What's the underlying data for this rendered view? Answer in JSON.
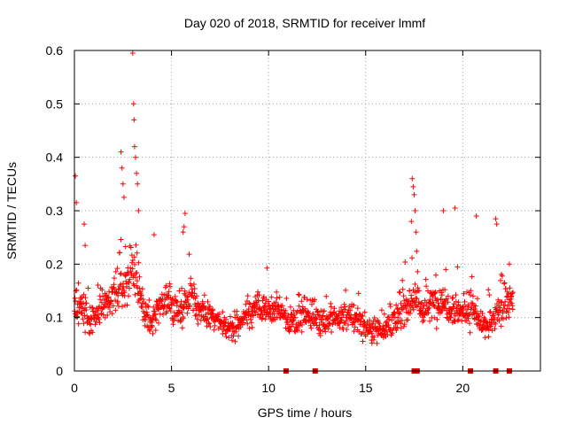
{
  "chart_data": {
    "type": "scatter",
    "title": "Day 020 of 2018, SRMTID for receiver lmmf",
    "xlabel": "GPS time / hours",
    "ylabel": "SRMTID / TECUs",
    "xlim": [
      0,
      24
    ],
    "ylim": [
      0,
      0.6
    ],
    "xticks": [
      "0",
      "5",
      "10",
      "15",
      "20"
    ],
    "yticks": [
      "0",
      "0.1",
      "0.2",
      "0.3",
      "0.4",
      "0.5",
      "0.6"
    ],
    "xtick_values": [
      0,
      5,
      10,
      15,
      20
    ],
    "ytick_values": [
      0,
      0.1,
      0.2,
      0.3,
      0.4,
      0.5,
      0.6
    ],
    "grid": true,
    "marker": "plus",
    "series_color": "#ff0000",
    "gap_marker_color": "#e00000",
    "x_range_of_data": [
      0,
      22.6
    ],
    "envelope": {
      "x": [
        0,
        0.5,
        1,
        1.5,
        2,
        2.5,
        3,
        3.5,
        4,
        4.5,
        5,
        5.5,
        6,
        6.5,
        7,
        7.5,
        8,
        8.5,
        9,
        9.5,
        10,
        10.5,
        11,
        11.5,
        12,
        12.5,
        13,
        13.5,
        14,
        14.5,
        15,
        15.5,
        16,
        16.5,
        17,
        17.5,
        18,
        18.5,
        19,
        19.5,
        20,
        20.5,
        21,
        21.5,
        22,
        22.5
      ],
      "median": [
        0.12,
        0.11,
        0.1,
        0.12,
        0.14,
        0.16,
        0.2,
        0.12,
        0.09,
        0.13,
        0.12,
        0.11,
        0.15,
        0.11,
        0.1,
        0.09,
        0.08,
        0.09,
        0.11,
        0.12,
        0.11,
        0.12,
        0.09,
        0.1,
        0.11,
        0.1,
        0.09,
        0.1,
        0.1,
        0.1,
        0.08,
        0.08,
        0.08,
        0.09,
        0.12,
        0.14,
        0.11,
        0.13,
        0.13,
        0.12,
        0.11,
        0.12,
        0.08,
        0.09,
        0.12,
        0.13
      ],
      "spread": [
        0.05,
        0.06,
        0.05,
        0.05,
        0.06,
        0.07,
        0.09,
        0.06,
        0.05,
        0.06,
        0.06,
        0.06,
        0.06,
        0.05,
        0.05,
        0.04,
        0.04,
        0.04,
        0.05,
        0.05,
        0.05,
        0.05,
        0.04,
        0.05,
        0.05,
        0.05,
        0.04,
        0.04,
        0.05,
        0.05,
        0.04,
        0.04,
        0.04,
        0.05,
        0.06,
        0.06,
        0.05,
        0.06,
        0.06,
        0.06,
        0.05,
        0.06,
        0.04,
        0.05,
        0.05,
        0.05
      ]
    },
    "point_count": 1400,
    "peaks": [
      {
        "x": 0.05,
        "y": 0.365
      },
      {
        "x": 0.1,
        "y": 0.315
      },
      {
        "x": 0.5,
        "y": 0.275
      },
      {
        "x": 0.55,
        "y": 0.235
      },
      {
        "x": 2.4,
        "y": 0.41
      },
      {
        "x": 2.45,
        "y": 0.38
      },
      {
        "x": 2.5,
        "y": 0.35
      },
      {
        "x": 2.55,
        "y": 0.325
      },
      {
        "x": 3.0,
        "y": 0.595
      },
      {
        "x": 3.05,
        "y": 0.5
      },
      {
        "x": 3.07,
        "y": 0.47
      },
      {
        "x": 3.1,
        "y": 0.42
      },
      {
        "x": 3.15,
        "y": 0.4
      },
      {
        "x": 3.2,
        "y": 0.37
      },
      {
        "x": 3.25,
        "y": 0.35
      },
      {
        "x": 3.3,
        "y": 0.3
      },
      {
        "x": 4.1,
        "y": 0.255
      },
      {
        "x": 5.7,
        "y": 0.295
      },
      {
        "x": 5.65,
        "y": 0.27
      },
      {
        "x": 5.6,
        "y": 0.26
      },
      {
        "x": 17.4,
        "y": 0.36
      },
      {
        "x": 17.45,
        "y": 0.345
      },
      {
        "x": 17.5,
        "y": 0.33
      },
      {
        "x": 17.55,
        "y": 0.3
      },
      {
        "x": 17.35,
        "y": 0.28
      },
      {
        "x": 17.6,
        "y": 0.26
      },
      {
        "x": 19.0,
        "y": 0.3
      },
      {
        "x": 19.6,
        "y": 0.305
      },
      {
        "x": 20.7,
        "y": 0.29
      },
      {
        "x": 21.7,
        "y": 0.285
      },
      {
        "x": 21.75,
        "y": 0.275
      },
      {
        "x": 22.4,
        "y": 0.2
      }
    ],
    "gap_markers_x": [
      10.9,
      12.4,
      17.5,
      17.65,
      20.4,
      21.7,
      22.4
    ]
  }
}
